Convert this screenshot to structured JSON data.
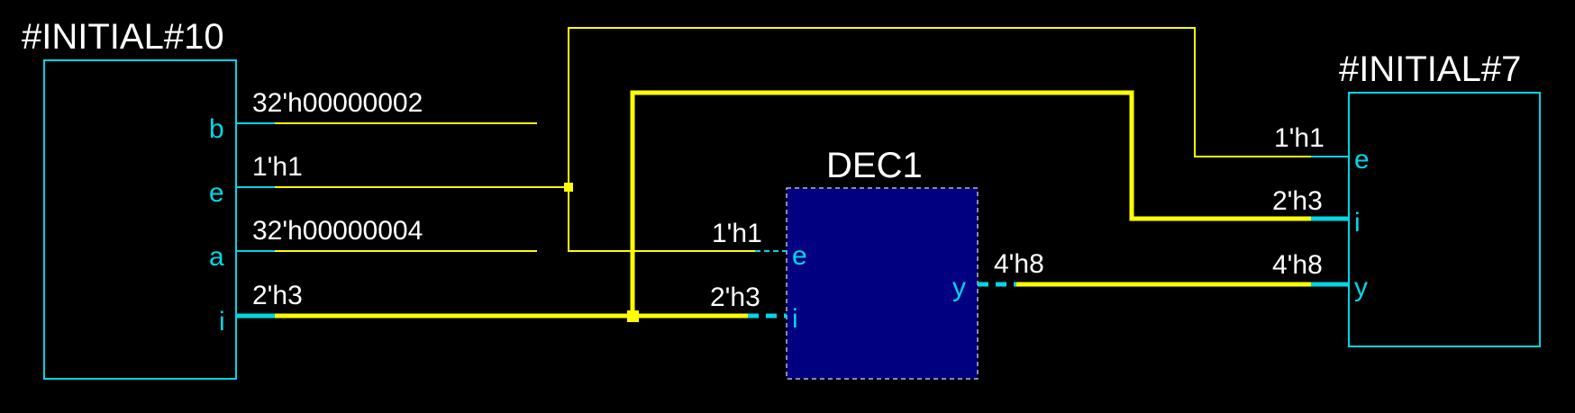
{
  "blocks": {
    "initial10": {
      "title": "#INITIAL#10",
      "ports": {
        "b": {
          "name": "b",
          "value": "32'h00000002"
        },
        "e": {
          "name": "e",
          "value": "1'h1"
        },
        "a": {
          "name": "a",
          "value": "32'h00000004"
        },
        "i": {
          "name": "i",
          "value": "2'h3"
        }
      }
    },
    "dec1": {
      "title": "DEC1",
      "ports": {
        "e": {
          "name": "e",
          "value": "1'h1"
        },
        "i": {
          "name": "i",
          "value": "2'h3"
        },
        "y": {
          "name": "y",
          "value": "4'h8"
        }
      }
    },
    "initial7": {
      "title": "#INITIAL#7",
      "ports": {
        "e": {
          "name": "e",
          "value": "1'h1"
        },
        "i": {
          "name": "i",
          "value": "2'h3"
        },
        "y": {
          "name": "y",
          "value": "4'h8"
        }
      }
    }
  },
  "colors": {
    "background": "#000000",
    "port_and_box": "#00d7e6",
    "wire": "#ffff00",
    "dec_fill": "#000080",
    "text": "#ffffff"
  }
}
